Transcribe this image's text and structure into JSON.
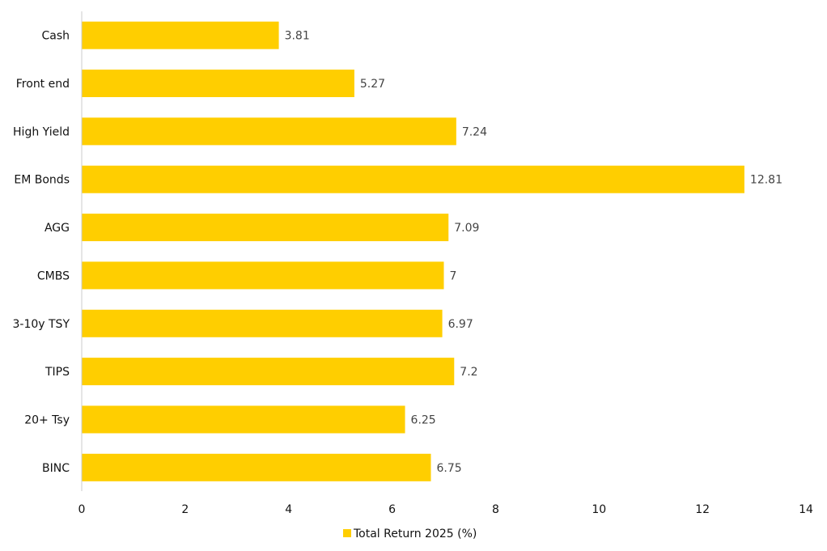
{
  "chart_data": {
    "type": "bar",
    "orientation": "horizontal",
    "categories": [
      "Cash",
      "Front end",
      "High Yield",
      "EM Bonds",
      "AGG",
      "CMBS",
      "3-10y TSY",
      "TIPS",
      "20+ Tsy",
      "BINC"
    ],
    "series": [
      {
        "name": "Total Return 2025 (%)",
        "values": [
          3.81,
          5.27,
          7.24,
          12.81,
          7.09,
          7,
          6.97,
          7.2,
          6.25,
          6.75
        ],
        "labels": [
          "3.81",
          "5.27",
          "7.24",
          "12.81",
          "7.09",
          "7",
          "6.97",
          "7.2",
          "6.25",
          "6.75"
        ],
        "color": "#FFCE00"
      }
    ],
    "title": "",
    "xlabel": "",
    "ylabel": "",
    "xlim": [
      0,
      14
    ],
    "xticks": [
      "0",
      "2",
      "4",
      "6",
      "8",
      "10",
      "12",
      "14"
    ],
    "grid": false,
    "legend": "bottom-center"
  }
}
